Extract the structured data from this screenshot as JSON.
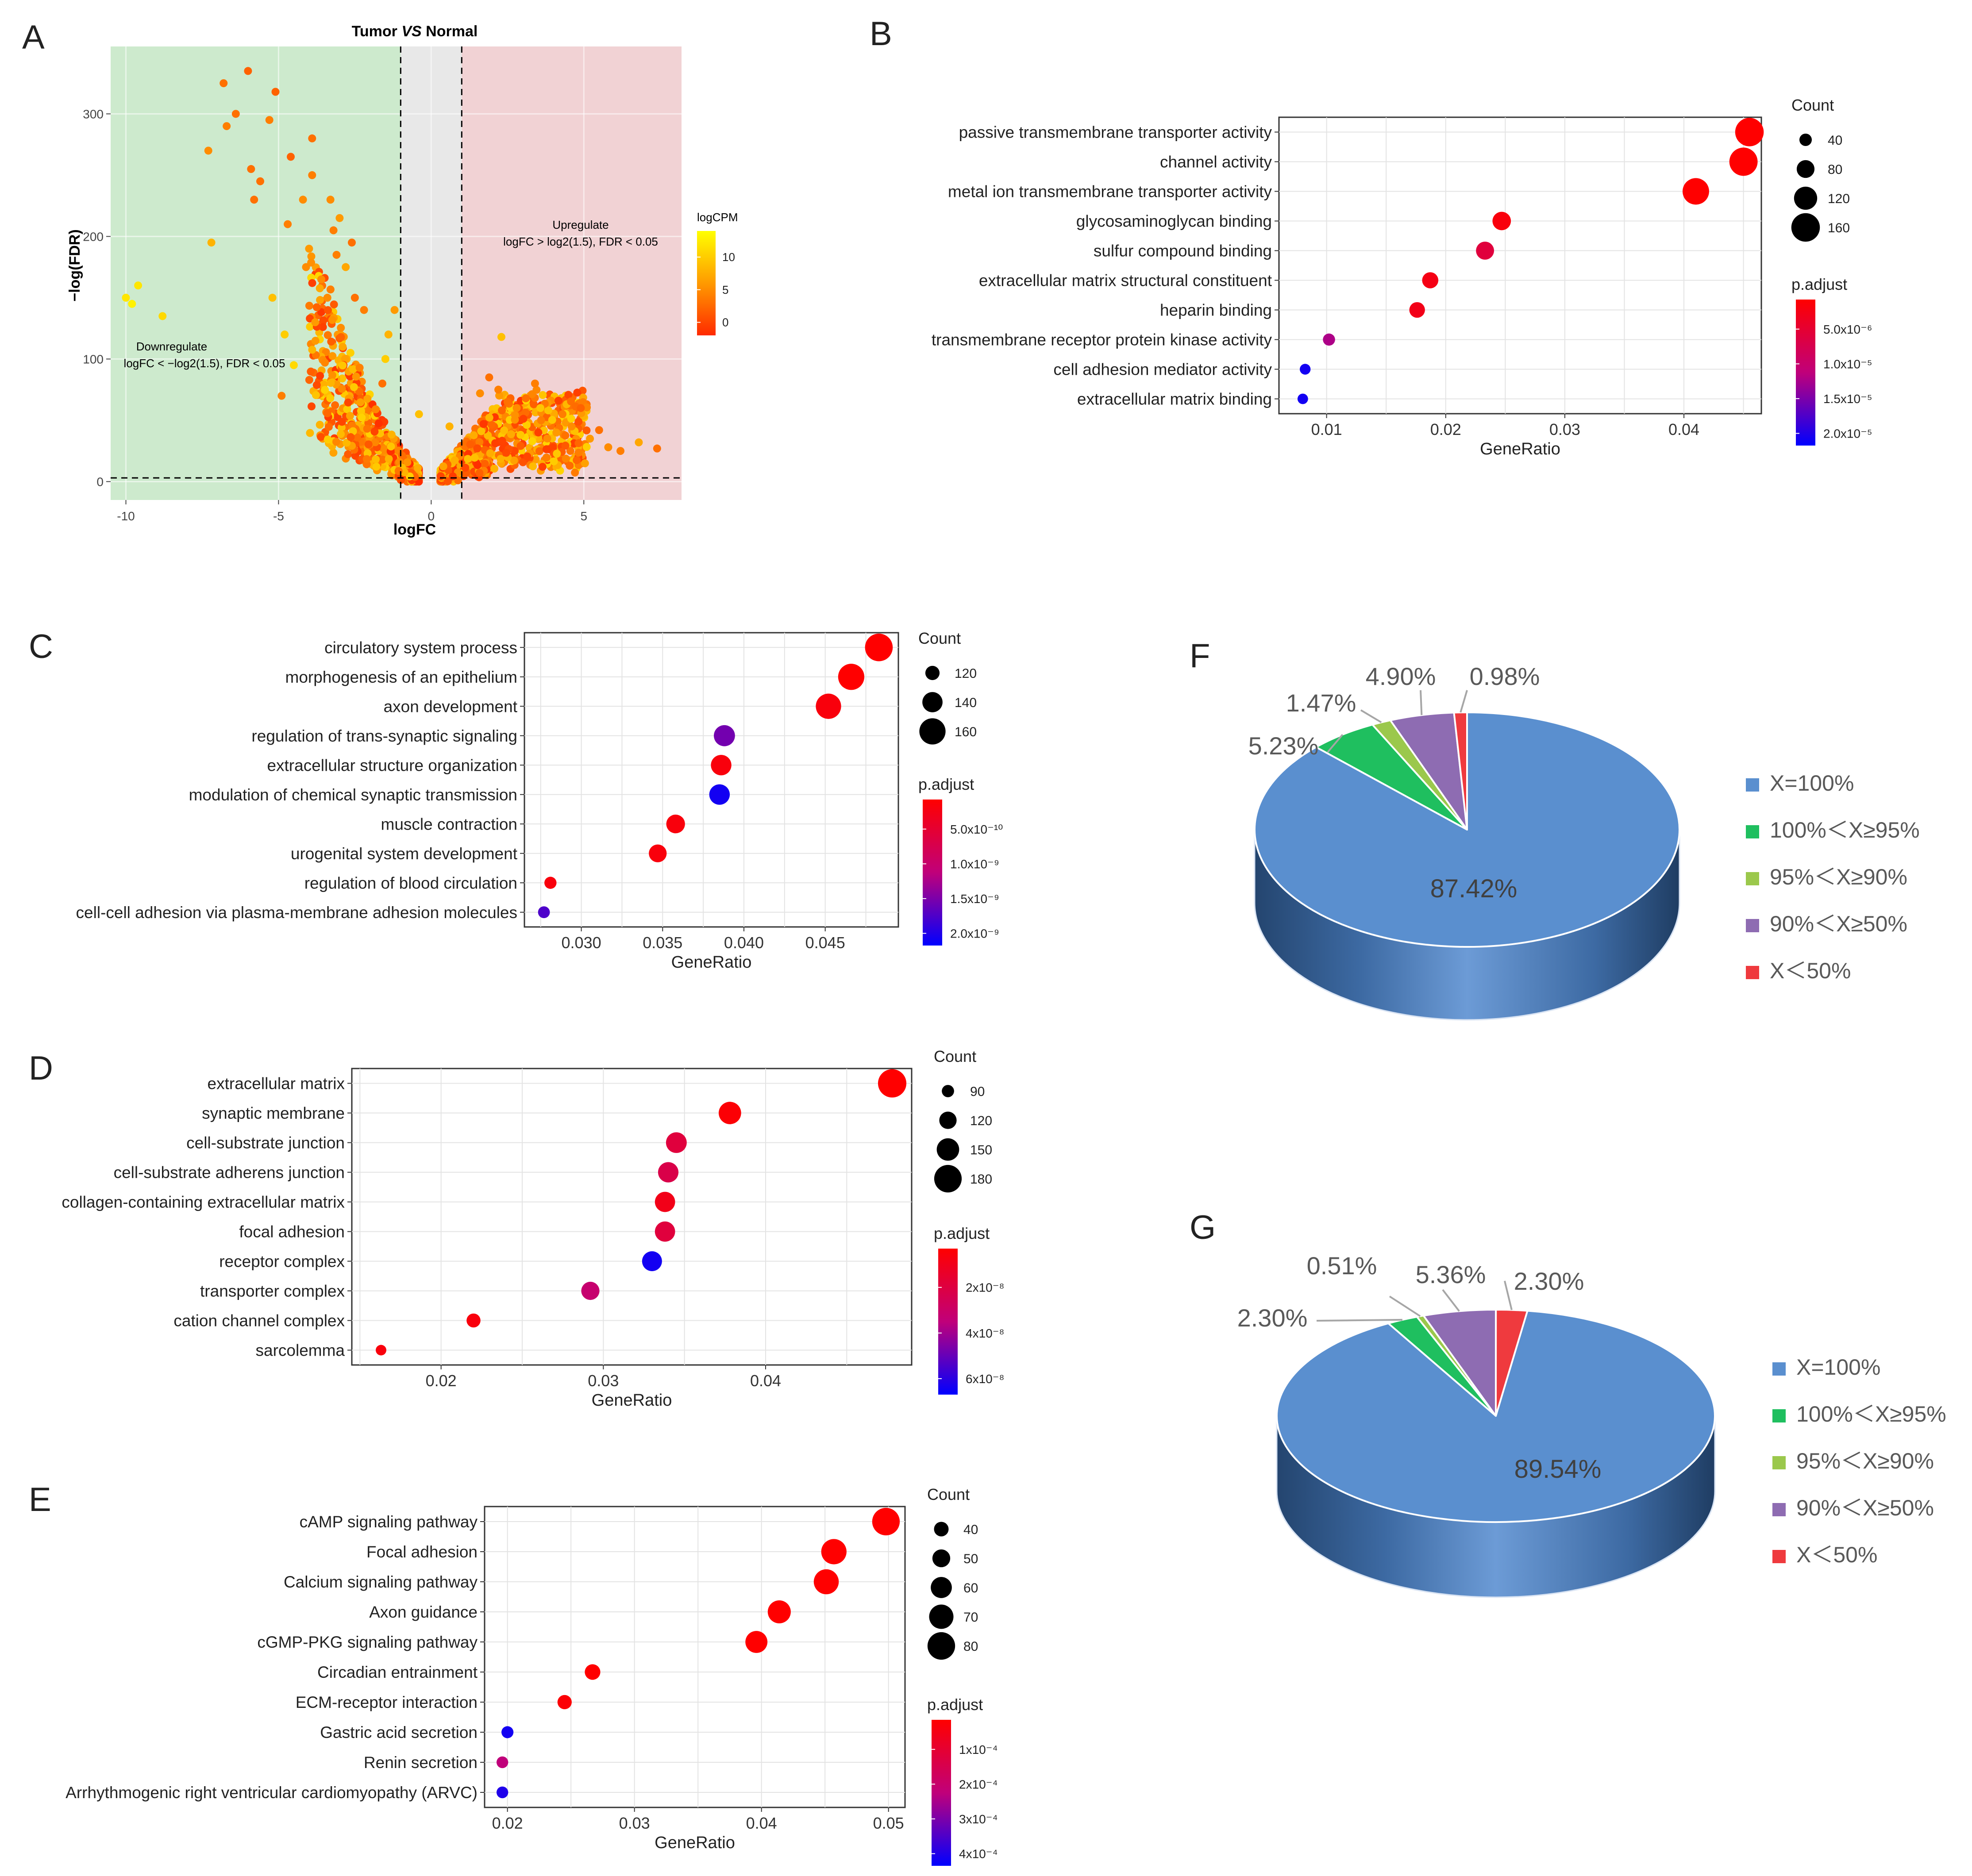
{
  "figure": {
    "panel_labels": {
      "A": "A",
      "B": "B",
      "C": "C",
      "D": "D",
      "E": "E",
      "F": "F",
      "G": "G"
    }
  },
  "colors": {
    "down_region": "#cdeacd",
    "mid_region": "#e8e8e8",
    "up_region": "#f1d2d4",
    "padj_high": "#ff0000",
    "padj_low": "#0000ff",
    "logcpm_low": "#ff2a00",
    "logcpm_high": "#ffff00",
    "pie_blue": "#5a8fcf",
    "pie_green": "#1fbf5f",
    "pie_lightgreen": "#9bc84c",
    "pie_purple": "#8e6cb2",
    "pie_red": "#ef3a3e"
  },
  "chart_data": [
    {
      "id": "A",
      "type": "scatter",
      "title_prefix": "Tumor ",
      "title_vs": "VS",
      "title_suffix": " Normal",
      "xlabel": "logFC",
      "ylabel": "−log(FDR)",
      "xlim": [
        -10.5,
        8.2
      ],
      "ylim": [
        -15,
        355
      ],
      "xticks": [
        -10,
        -5,
        0,
        5
      ],
      "yticks": [
        0,
        100,
        200,
        300
      ],
      "vlines": [
        -1,
        1
      ],
      "hline": 3,
      "legend_title": "logCPM",
      "legend_ticks": [
        0,
        5,
        10
      ],
      "legend_range": [
        -2,
        14
      ],
      "down_text_1": "Downregulate",
      "down_text_2": "logFC < −log2(1.5), FDR < 0.05",
      "up_text_1": "Upregulate",
      "up_text_2": "logFC > log2(1.5), FDR < 0.05",
      "points": [
        [
          -9.6,
          160,
          12
        ],
        [
          -9.8,
          145,
          13
        ],
        [
          -7.3,
          270,
          5
        ],
        [
          -7.2,
          195,
          8
        ],
        [
          -6.8,
          325,
          3
        ],
        [
          -6.7,
          290,
          4
        ],
        [
          -6.0,
          335,
          2
        ],
        [
          -5.9,
          255,
          3
        ],
        [
          -5.3,
          295,
          4
        ],
        [
          -5.1,
          318,
          2
        ],
        [
          -5.6,
          245,
          3
        ],
        [
          -4.7,
          210,
          4
        ],
        [
          -3.9,
          280,
          3
        ],
        [
          -3.9,
          250,
          4
        ],
        [
          -4.2,
          230,
          5
        ],
        [
          -4.0,
          190,
          6
        ],
        [
          -3.3,
          230,
          5
        ],
        [
          -3.0,
          215,
          6
        ],
        [
          -2.8,
          175,
          7
        ],
        [
          -5.2,
          150,
          9
        ],
        [
          -4.8,
          120,
          10
        ],
        [
          -4.9,
          70,
          4
        ],
        [
          -3.6,
          165,
          5
        ],
        [
          -3.2,
          205,
          4
        ],
        [
          -2.5,
          150,
          3
        ],
        [
          -2.2,
          140,
          4
        ],
        [
          -4.5,
          95,
          11
        ],
        [
          -3.8,
          130,
          6
        ],
        [
          -4.1,
          175,
          5
        ],
        [
          -2.9,
          110,
          7
        ],
        [
          -1.6,
          80,
          3
        ],
        [
          -1.4,
          120,
          8
        ],
        [
          -1.2,
          140,
          6
        ],
        [
          -1.5,
          100,
          10
        ],
        [
          -3.4,
          150,
          5
        ],
        [
          -3.1,
          185,
          4
        ],
        [
          -2.6,
          195,
          3
        ],
        [
          -5.8,
          230,
          3
        ],
        [
          -6.4,
          300,
          3
        ],
        [
          -4.6,
          265,
          2
        ],
        [
          2.2,
          75,
          4
        ],
        [
          2.5,
          65,
          3
        ],
        [
          2.8,
          60,
          5
        ],
        [
          3.1,
          68,
          3
        ],
        [
          3.6,
          50,
          4
        ],
        [
          4.1,
          40,
          6
        ],
        [
          4.6,
          45,
          5
        ],
        [
          4.9,
          60,
          2
        ],
        [
          5.2,
          35,
          6
        ],
        [
          5.8,
          28,
          5
        ],
        [
          6.2,
          25,
          4
        ],
        [
          7.4,
          27,
          3
        ],
        [
          3.4,
          80,
          4
        ],
        [
          1.6,
          72,
          5
        ],
        [
          1.9,
          85,
          3
        ],
        [
          6.8,
          32,
          7
        ],
        [
          5.5,
          42,
          3
        ],
        [
          4.3,
          55,
          4
        ],
        [
          2.3,
          118,
          9
        ],
        [
          -0.4,
          55,
          9
        ],
        [
          0.6,
          45,
          8
        ],
        [
          -10.0,
          150,
          12
        ],
        [
          -8.8,
          135,
          11
        ]
      ]
    },
    {
      "id": "B",
      "type": "scatter",
      "xlabel": "GeneRatio",
      "xlim": [
        0.006,
        0.0465
      ],
      "xticks": [
        0.01,
        0.02,
        0.03,
        0.04
      ],
      "xtick_labels": [
        "0.01",
        "0.02",
        "0.03",
        "0.04"
      ],
      "terms": [
        "passive transmembrane transporter activity",
        "channel activity",
        "metal ion transmembrane transporter activity",
        "glycosaminoglycan binding",
        "sulfur compound binding",
        "extracellular matrix structural constituent",
        "heparin binding",
        "transmembrane receptor protein kinase activity",
        "cell adhesion mediator activity",
        "extracellular matrix binding"
      ],
      "gene_ratio": [
        0.0455,
        0.045,
        0.041,
        0.0247,
        0.0233,
        0.0187,
        0.0176,
        0.0102,
        0.0082,
        0.008
      ],
      "count": [
        160,
        158,
        145,
        85,
        82,
        68,
        64,
        38,
        28,
        26
      ],
      "padj_color": [
        0.0,
        0.0,
        0.0,
        0.05,
        0.25,
        0.08,
        0.1,
        0.55,
        0.95,
        0.95
      ],
      "size_legend_title": "Count",
      "size_legend_labels": [
        "40",
        "80",
        "120",
        "160"
      ],
      "size_legend_values": [
        40,
        80,
        120,
        160
      ],
      "size_range": [
        20,
        165
      ],
      "color_legend_title": "p.adjust",
      "color_legend_labels": [
        "5.0x10⁻⁶",
        "1.0x10⁻⁵",
        "1.5x10⁻⁵",
        "2.0x10⁻⁵"
      ]
    },
    {
      "id": "C",
      "type": "scatter",
      "xlabel": "GeneRatio",
      "xlim": [
        0.0265,
        0.0495
      ],
      "xticks": [
        0.03,
        0.035,
        0.04,
        0.045
      ],
      "xtick_labels": [
        "0.030",
        "0.035",
        "0.040",
        "0.045"
      ],
      "terms": [
        "circulatory system process",
        "morphogenesis of an epithelium",
        "axon development",
        "regulation of trans-synaptic signaling",
        "extracellular structure organization",
        "modulation of chemical synaptic transmission",
        "muscle contraction",
        "urogenital system development",
        "regulation of blood circulation",
        "cell-cell adhesion via plasma-membrane adhesion molecules"
      ],
      "gene_ratio": [
        0.0483,
        0.0466,
        0.0452,
        0.0388,
        0.0386,
        0.0385,
        0.0358,
        0.0347,
        0.0281,
        0.0277
      ],
      "count": [
        165,
        160,
        157,
        143,
        141,
        141,
        135,
        132,
        113,
        112
      ],
      "padj_color": [
        0.0,
        0.0,
        0.05,
        0.7,
        0.05,
        0.95,
        0.05,
        0.05,
        0.05,
        0.8
      ],
      "size_legend_title": "Count",
      "size_legend_labels": [
        "120",
        "140",
        "160"
      ],
      "size_legend_values": [
        120,
        140,
        160
      ],
      "size_range": [
        105,
        170
      ],
      "color_legend_title": "p.adjust",
      "color_legend_labels": [
        "5.0x10⁻¹⁰",
        "1.0x10⁻⁹",
        "1.5x10⁻⁹",
        "2.0x10⁻⁹"
      ]
    },
    {
      "id": "D",
      "type": "scatter",
      "xlabel": "GeneRatio",
      "xlim": [
        0.0145,
        0.049
      ],
      "xticks": [
        0.02,
        0.03,
        0.04
      ],
      "xtick_labels": [
        "0.02",
        "0.03",
        "0.04"
      ],
      "terms": [
        "extracellular matrix",
        "synaptic membrane",
        "cell-substrate junction",
        "cell-substrate adherens junction",
        "collagen-containing extracellular matrix",
        "focal adhesion",
        "receptor complex",
        "transporter complex",
        "cation channel complex",
        "sarcolemma"
      ],
      "gene_ratio": [
        0.0478,
        0.0378,
        0.0345,
        0.034,
        0.0338,
        0.0338,
        0.033,
        0.0292,
        0.022,
        0.0163
      ],
      "count": [
        185,
        150,
        140,
        138,
        137,
        137,
        135,
        125,
        100,
        80
      ],
      "padj_color": [
        0.0,
        0.02,
        0.25,
        0.3,
        0.1,
        0.25,
        0.95,
        0.45,
        0.05,
        0.05
      ],
      "size_legend_title": "Count",
      "size_legend_labels": [
        "90",
        "120",
        "150",
        "180"
      ],
      "size_legend_values": [
        90,
        120,
        150,
        180
      ],
      "size_range": [
        75,
        190
      ],
      "color_legend_title": "p.adjust",
      "color_legend_labels": [
        "2x10⁻⁸",
        "4x10⁻⁸",
        "6x10⁻⁸"
      ]
    },
    {
      "id": "E",
      "type": "scatter",
      "xlabel": "GeneRatio",
      "xlim": [
        0.0182,
        0.0513
      ],
      "xticks": [
        0.02,
        0.03,
        0.04,
        0.05
      ],
      "xtick_labels": [
        "0.02",
        "0.03",
        "0.04",
        "0.05"
      ],
      "terms": [
        "cAMP signaling pathway",
        "Focal adhesion",
        "Calcium signaling pathway",
        "Axon guidance",
        "cGMP-PKG signaling pathway",
        "Circadian entrainment",
        "ECM-receptor interaction",
        "Gastric acid secretion",
        "Renin secretion",
        "Arrhythmogenic right ventricular cardiomyopathy (ARVC)"
      ],
      "gene_ratio": [
        0.0498,
        0.0457,
        0.0451,
        0.0414,
        0.0396,
        0.0267,
        0.0245,
        0.02,
        0.0196,
        0.0196
      ],
      "count": [
        80,
        73,
        72,
        66,
        63,
        43,
        39,
        32,
        31,
        31
      ],
      "padj_color": [
        0.0,
        0.0,
        0.0,
        0.0,
        0.0,
        0.0,
        0.02,
        0.95,
        0.5,
        0.92
      ],
      "size_legend_title": "Count",
      "size_legend_labels": [
        "40",
        "50",
        "60",
        "70",
        "80"
      ],
      "size_legend_values": [
        40,
        50,
        60,
        70,
        80
      ],
      "size_range": [
        25,
        85
      ],
      "color_legend_title": "p.adjust",
      "color_legend_labels": [
        "1x10⁻⁴",
        "2x10⁻⁴",
        "3x10⁻⁴",
        "4x10⁻⁴"
      ]
    },
    {
      "id": "F",
      "type": "pie",
      "categories": [
        "X=100%",
        "100%＜X≥95%",
        "95%＜X≥90%",
        "90%＜X≥50%",
        "X＜50%"
      ],
      "values": [
        87.42,
        5.23,
        1.47,
        4.9,
        0.98
      ],
      "labels": [
        "87.42%",
        "5.23%",
        "1.47%",
        "4.90%",
        "0.98%"
      ]
    },
    {
      "id": "G",
      "type": "pie",
      "categories": [
        "X=100%",
        "100%＜X≥95%",
        "95%＜X≥90%",
        "90%＜X≥50%",
        "X＜50%"
      ],
      "values": [
        89.54,
        2.3,
        0.51,
        5.36,
        2.3
      ],
      "labels": [
        "89.54%",
        "2.30%",
        "0.51%",
        "5.36%",
        "2.30%"
      ]
    }
  ]
}
